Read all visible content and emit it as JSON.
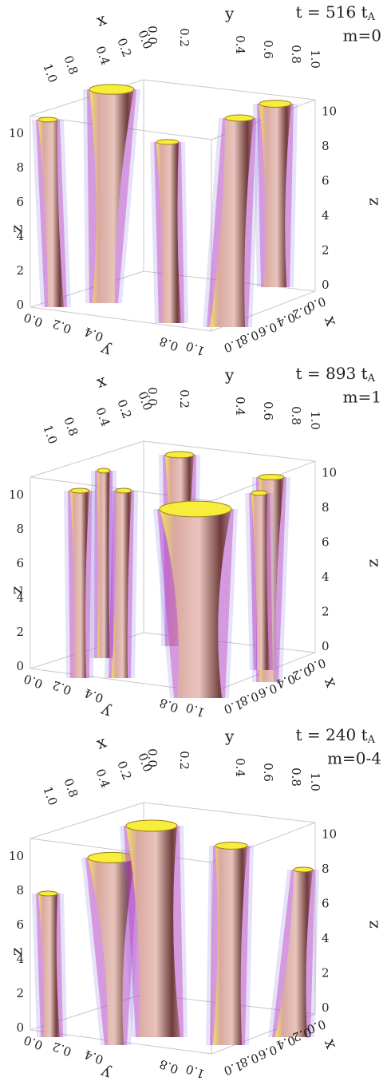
{
  "panels": [
    {
      "time": "t = 516 t",
      "time_sub": "A",
      "mode": "m=0"
    },
    {
      "time": "t = 893 t",
      "time_sub": "A",
      "mode": "m=1"
    },
    {
      "time": "t = 240 t",
      "time_sub": "A",
      "mode": "m=0-4"
    }
  ],
  "axes": {
    "x_label": "x",
    "y_label": "y",
    "z_label": "z",
    "top_x_ticks": [
      "1.0",
      "0.8",
      "0.4",
      "0.2",
      "0.0"
    ],
    "top_y_ticks": [
      "0.0",
      "0.2",
      "0.4",
      "0.6",
      "0.8",
      "1.0"
    ],
    "z_ticks": [
      "0",
      "2",
      "4",
      "6",
      "8",
      "10"
    ],
    "bottom_y_ticks": [
      "0.0",
      "0.2",
      "0.4",
      "0.8",
      "1.0"
    ],
    "bottom_x_ticks": [
      "1.0",
      "0.8",
      "0.6",
      "0.4",
      "0.2",
      "0.0"
    ]
  }
}
